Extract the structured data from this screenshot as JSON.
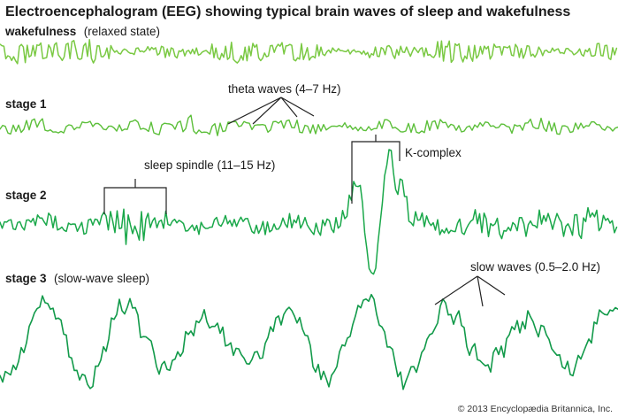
{
  "title": "Electroencephalogram (EEG) showing typical brain waves of sleep and wakefulness",
  "colors": {
    "wake": "#7ac943",
    "stage1": "#5cbf3a",
    "stage2": "#1aa84a",
    "stage3": "#129a4a",
    "text": "#1a1a1a"
  },
  "traces": [
    {
      "key": "wake",
      "name": "wakefulness",
      "qualifier": "(relaxed state)"
    },
    {
      "key": "stage1",
      "name": "stage 1",
      "qualifier": ""
    },
    {
      "key": "stage2",
      "name": "stage 2",
      "qualifier": ""
    },
    {
      "key": "stage3",
      "name": "stage 3",
      "qualifier": "(slow-wave sleep)"
    }
  ],
  "annotations": {
    "theta": "theta waves (4–7 Hz)",
    "spindle": "sleep spindle (11–15 Hz)",
    "kcomplex": "K-complex",
    "slow": "slow waves (0.5–2.0 Hz)"
  },
  "credit": "© 2013 Encyclopædia Britannica, Inc."
}
